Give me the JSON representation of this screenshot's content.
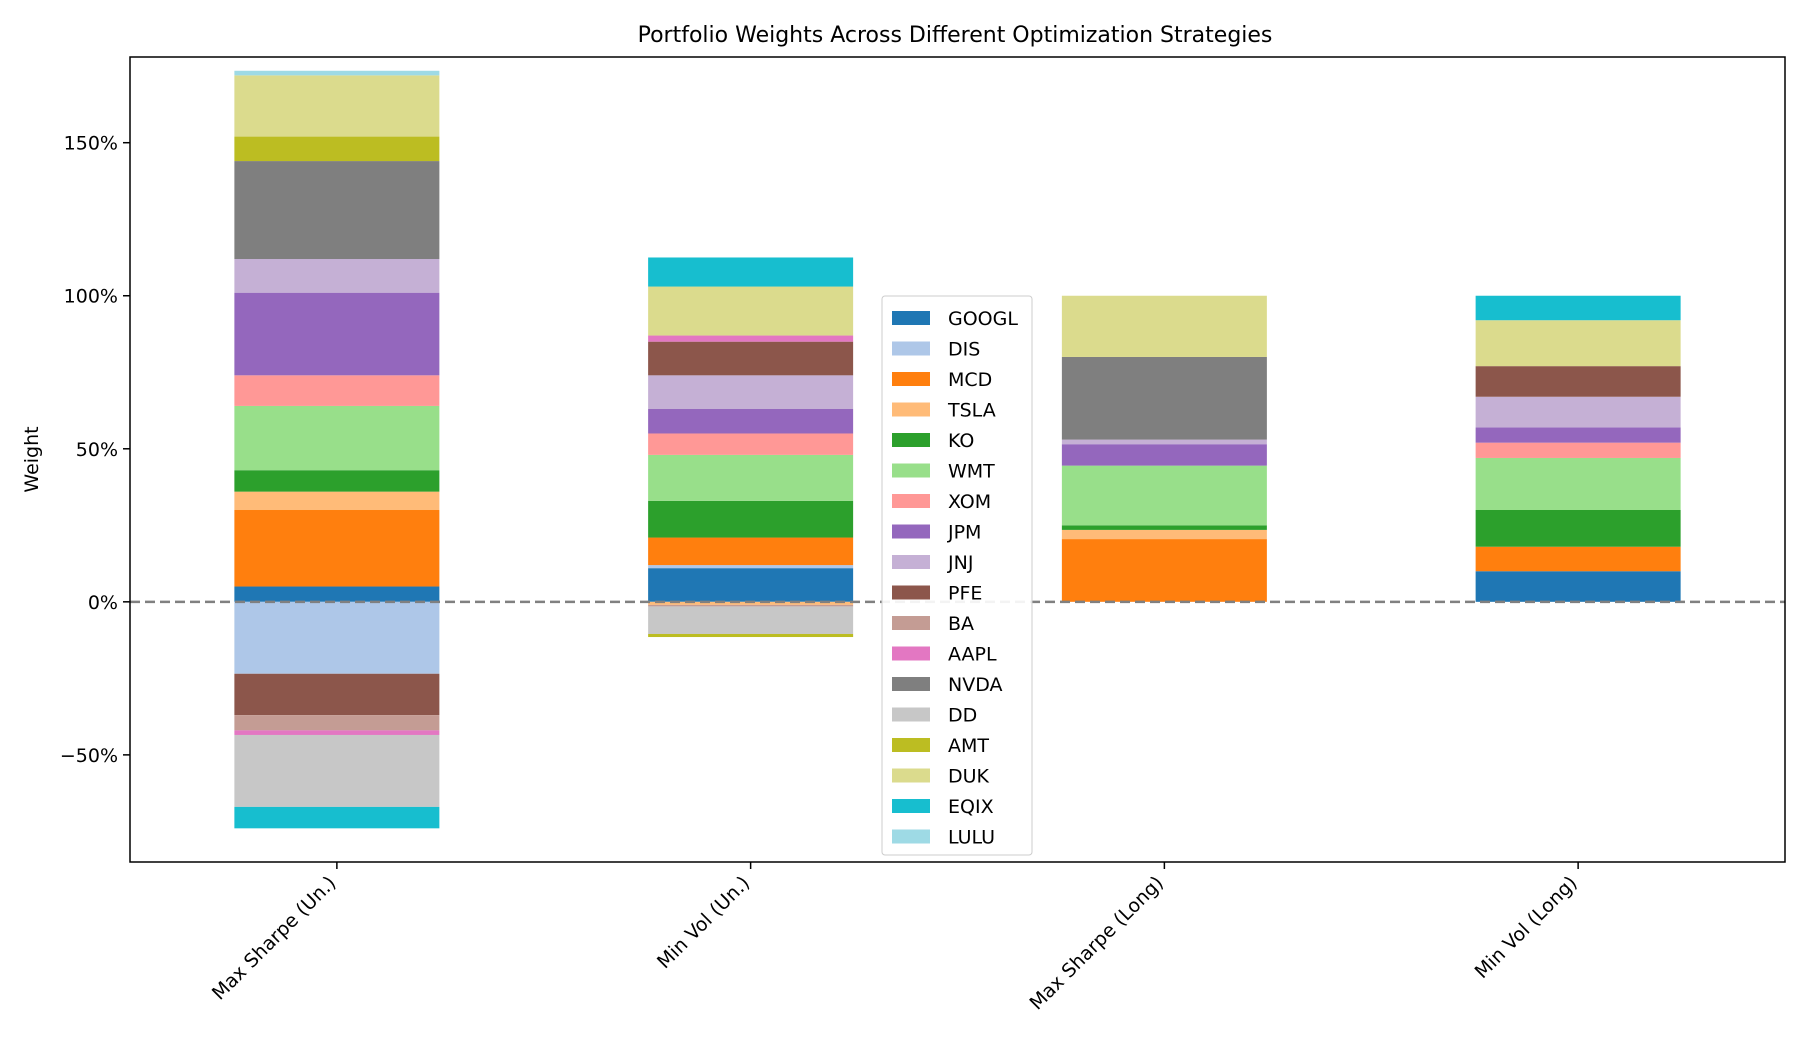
{
  "chart_data": {
    "type": "bar",
    "stacked": true,
    "title": "Portfolio Weights Across Different Optimization Strategies",
    "xlabel": "",
    "ylabel": "Weight",
    "ylim": [
      -85,
      178
    ],
    "yticks": [
      -50,
      0,
      50,
      100,
      150
    ],
    "ytick_labels": [
      "−50%",
      "0%",
      "50%",
      "100%",
      "150%"
    ],
    "y_unit": "%",
    "grid": false,
    "reference_line": {
      "y": 0,
      "style": "dashed",
      "color": "#808080"
    },
    "legend_placement": "center",
    "categories": [
      "Max Sharpe (Un.)",
      "Min Vol (Un.)",
      "Max Sharpe (Long)",
      "Min Vol (Long)"
    ],
    "series": [
      {
        "name": "GOOGL",
        "color": "#1f77b4",
        "values": [
          5,
          11,
          0,
          10
        ]
      },
      {
        "name": "DIS",
        "color": "#aec7e8",
        "values": [
          -23.5,
          1,
          0,
          0
        ]
      },
      {
        "name": "MCD",
        "color": "#ff7f0e",
        "values": [
          25,
          9,
          20.5,
          8
        ]
      },
      {
        "name": "TSLA",
        "color": "#ffbb78",
        "values": [
          6,
          -1,
          3,
          0
        ]
      },
      {
        "name": "KO",
        "color": "#2ca02c",
        "values": [
          7,
          12,
          1.5,
          12
        ]
      },
      {
        "name": "WMT",
        "color": "#98df8a",
        "values": [
          21,
          15,
          19.5,
          17
        ]
      },
      {
        "name": "XOM",
        "color": "#ff9896",
        "values": [
          10,
          7,
          0,
          5
        ]
      },
      {
        "name": "JPM",
        "color": "#9467bd",
        "values": [
          27,
          8,
          7,
          5
        ]
      },
      {
        "name": "JNJ",
        "color": "#c5b0d5",
        "values": [
          11,
          11,
          1.5,
          10
        ]
      },
      {
        "name": "PFE",
        "color": "#8c564b",
        "values": [
          -13.5,
          11,
          0,
          10
        ]
      },
      {
        "name": "BA",
        "color": "#c49c94",
        "values": [
          -5,
          -0.5,
          0,
          0
        ]
      },
      {
        "name": "AAPL",
        "color": "#e377c2",
        "values": [
          -1.5,
          2,
          0,
          0
        ]
      },
      {
        "name": "NVDA",
        "color": "#7f7f7f",
        "values": [
          32,
          0,
          27,
          0
        ]
      },
      {
        "name": "DD",
        "color": "#c7c7c7",
        "values": [
          -23.5,
          -9,
          0,
          0
        ]
      },
      {
        "name": "AMT",
        "color": "#bcbd22",
        "values": [
          8,
          -1,
          0,
          0
        ]
      },
      {
        "name": "DUK",
        "color": "#dbdb8d",
        "values": [
          20,
          16,
          20,
          15
        ]
      },
      {
        "name": "EQIX",
        "color": "#17becf",
        "values": [
          -7,
          9.5,
          0,
          8
        ]
      },
      {
        "name": "LULU",
        "color": "#9edae5",
        "values": [
          1.5,
          0,
          0,
          0
        ]
      }
    ]
  }
}
